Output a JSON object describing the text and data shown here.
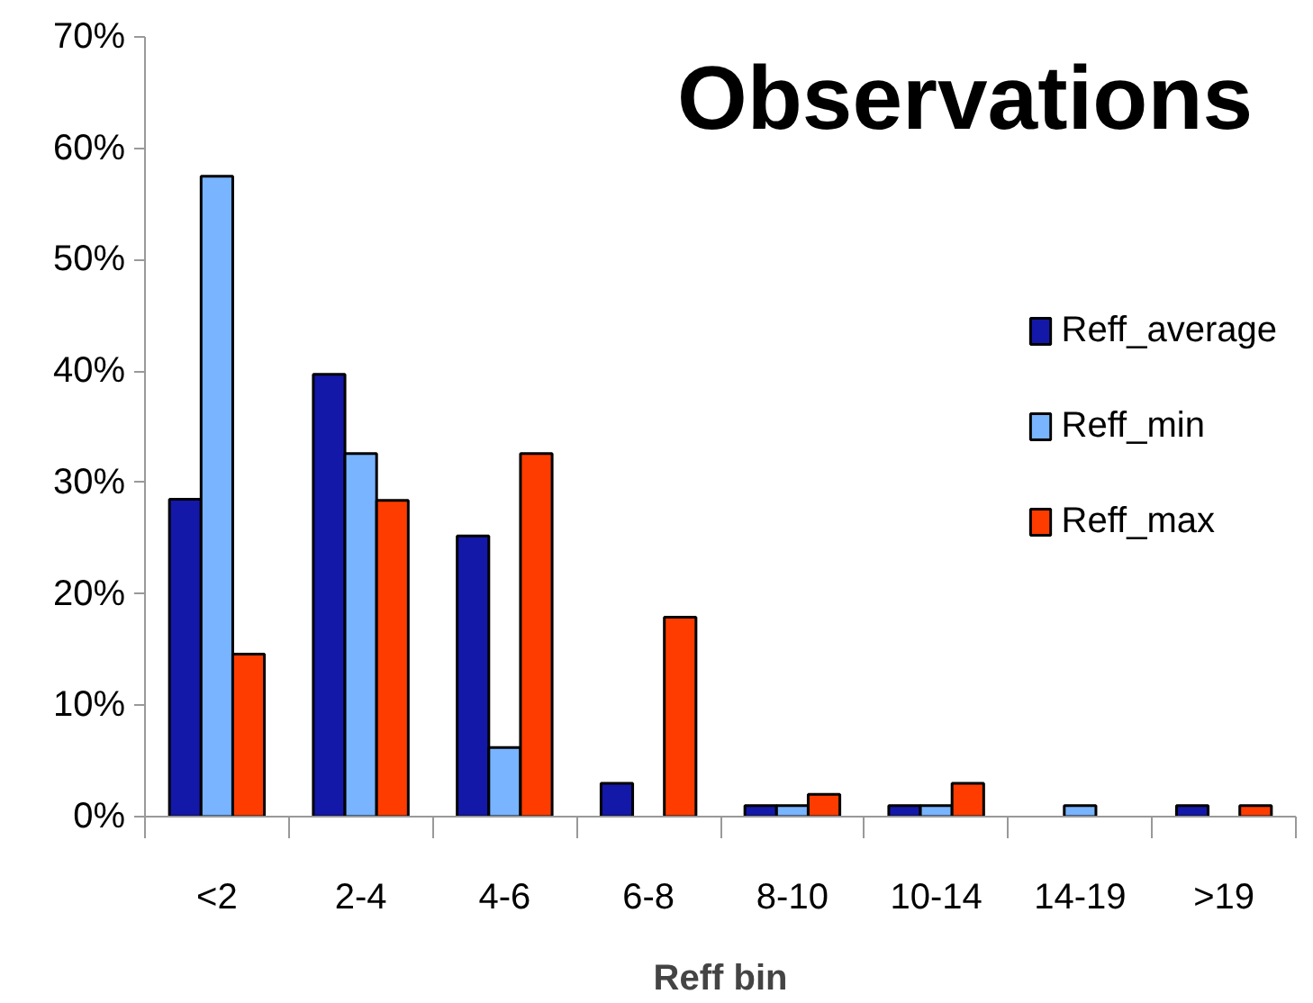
{
  "chart_data": {
    "type": "bar",
    "title": "Observations",
    "xlabel": "Reff bin",
    "categories": [
      "<2",
      "2-4",
      "4-6",
      "6-8",
      "8-10",
      "10-14",
      "14-19",
      ">19"
    ],
    "series": [
      {
        "name": "Reff_average",
        "color": "#1418a8",
        "values": [
          28.5,
          39.7,
          25.2,
          3.0,
          1.0,
          1.0,
          null,
          1.0
        ]
      },
      {
        "name": "Reff_min",
        "color": "#78b4ff",
        "values": [
          57.5,
          32.6,
          6.2,
          null,
          1.0,
          1.0,
          1.0,
          null
        ]
      },
      {
        "name": "Reff_max",
        "color": "#ff3c00",
        "values": [
          14.6,
          28.4,
          32.6,
          17.9,
          2.0,
          3.0,
          null,
          1.0
        ]
      }
    ],
    "ylim": [
      0,
      70
    ],
    "yticks": [
      {
        "value": 0,
        "label": "0%"
      },
      {
        "value": 10,
        "label": "10%"
      },
      {
        "value": 20,
        "label": "20%"
      },
      {
        "value": 30,
        "label": "30%"
      },
      {
        "value": 40,
        "label": "40%"
      },
      {
        "value": 50,
        "label": "50%"
      },
      {
        "value": 60,
        "label": "60%"
      },
      {
        "value": 70,
        "label": "70%"
      }
    ],
    "grid": false,
    "legend": "right"
  }
}
